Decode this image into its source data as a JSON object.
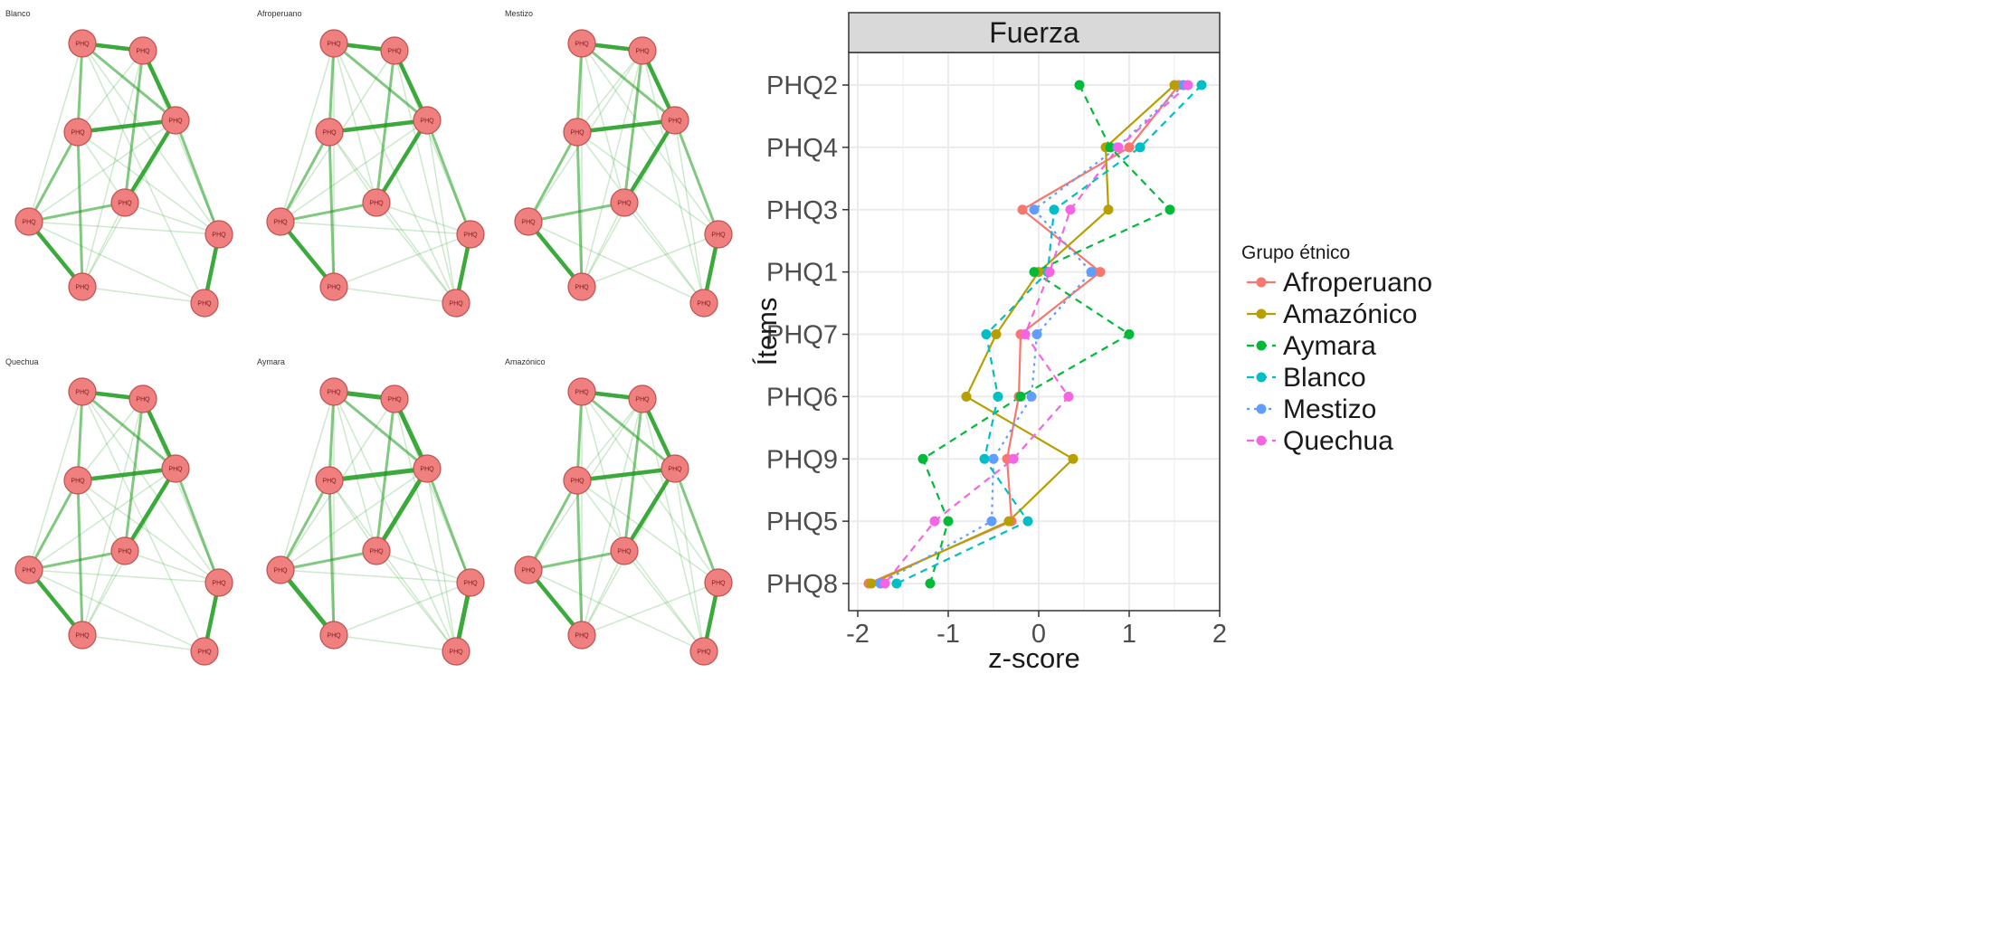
{
  "networks": [
    {
      "title": "Blanco"
    },
    {
      "title": "Afroperuano"
    },
    {
      "title": "Mestizo"
    },
    {
      "title": "Quechua"
    },
    {
      "title": "Aymara"
    },
    {
      "title": "Amazónico"
    }
  ],
  "node_label": "PHQ",
  "colors": {
    "node_fill": "#f08080",
    "node_stroke": "#c0504d",
    "edge": "#1a9a1a",
    "panel_bg": "#ffffff",
    "strip_bg": "#d9d9d9",
    "grid": "#ebebeb"
  },
  "chart_data": {
    "type": "line",
    "facet_title": "Fuerza",
    "xlabel": "z-score",
    "ylabel": "Ítems",
    "xlim": [
      -2.1,
      2.0
    ],
    "x_ticks": [
      -2,
      -1,
      0,
      1,
      2
    ],
    "x_tick_labels": [
      "-2",
      "-1",
      "0",
      "1",
      "2"
    ],
    "categories": [
      "PHQ2",
      "PHQ4",
      "PHQ3",
      "PHQ1",
      "PHQ7",
      "PHQ6",
      "PHQ9",
      "PHQ5",
      "PHQ8"
    ],
    "grid": true,
    "legend_title": "Grupo étnico",
    "legend_position": "right",
    "series": [
      {
        "name": "Afroperuano",
        "color": "#f8766d",
        "dash": "solid",
        "values": [
          1.55,
          1.0,
          -0.18,
          0.68,
          -0.2,
          -0.22,
          -0.35,
          -0.3,
          -1.88
        ]
      },
      {
        "name": "Amazónico",
        "color": "#b79f00",
        "dash": "solid",
        "values": [
          1.5,
          0.74,
          0.77,
          0.0,
          -0.47,
          -0.8,
          0.38,
          -0.33,
          -1.85
        ]
      },
      {
        "name": "Aymara",
        "color": "#00ba38",
        "dash": "dashed",
        "values": [
          0.45,
          0.79,
          1.45,
          -0.05,
          1.0,
          -0.2,
          -1.28,
          -1.0,
          -1.2
        ]
      },
      {
        "name": "Blanco",
        "color": "#00bfc4",
        "dash": "dashed",
        "values": [
          1.8,
          1.12,
          0.17,
          0.1,
          -0.58,
          -0.45,
          -0.6,
          -0.12,
          -1.57
        ]
      },
      {
        "name": "Mestizo",
        "color": "#619cff",
        "dash": "dotted",
        "values": [
          1.6,
          0.87,
          -0.05,
          0.58,
          -0.02,
          -0.08,
          -0.5,
          -0.52,
          -1.75
        ]
      },
      {
        "name": "Quechua",
        "color": "#f564e3",
        "dash": "dashed",
        "values": [
          1.65,
          0.88,
          0.35,
          0.12,
          -0.15,
          0.33,
          -0.28,
          -1.15,
          -1.7
        ]
      }
    ]
  }
}
